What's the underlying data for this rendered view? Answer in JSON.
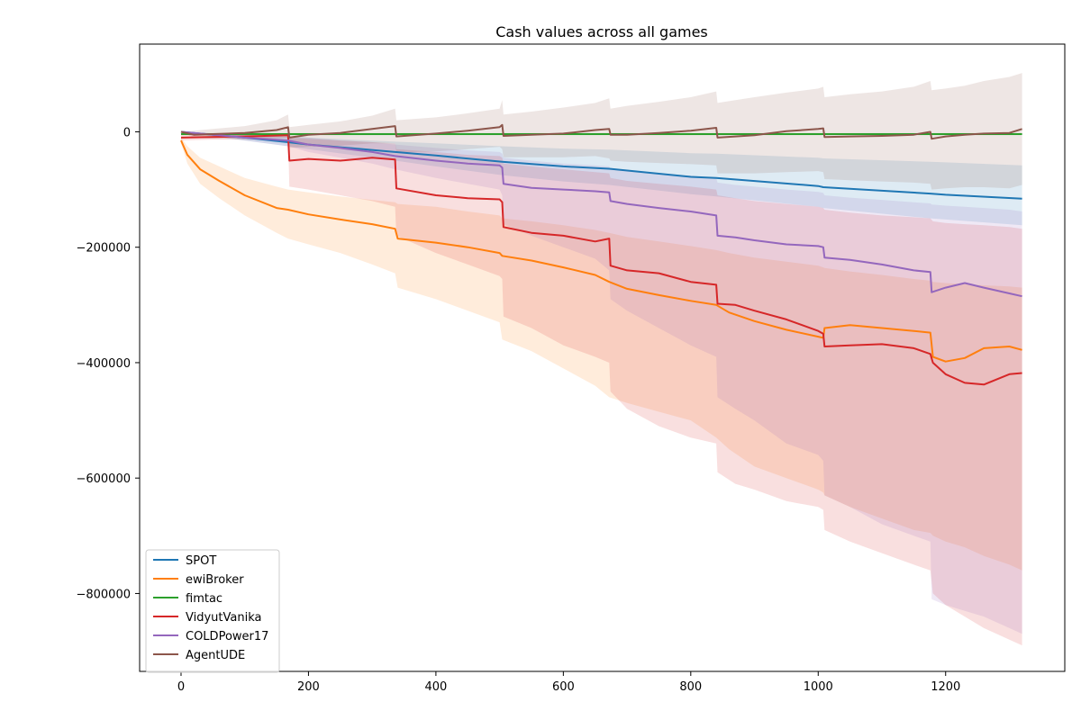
{
  "chart_data": {
    "type": "line",
    "title": "Cash values across all games",
    "xlabel": "",
    "ylabel": "",
    "xlim": [
      -65,
      1387
    ],
    "ylim": [
      -935000,
      152000
    ],
    "xticks": [
      0,
      200,
      400,
      600,
      800,
      1000,
      1200
    ],
    "xtick_labels": [
      "0",
      "200",
      "400",
      "600",
      "800",
      "1000",
      "1200"
    ],
    "yticks": [
      0,
      -200000,
      -400000,
      -600000,
      -800000
    ],
    "ytick_labels": [
      "0",
      "−200000",
      "−400000",
      "−600000",
      "−800000"
    ],
    "grid": false,
    "legend_position": "lower-left",
    "series": [
      {
        "name": "SPOT",
        "color": "#1f77b4",
        "x": [
          0,
          100,
          168,
          200,
          336,
          400,
          504,
          600,
          672,
          800,
          840,
          1000,
          1008,
          1176,
          1200,
          1320
        ],
        "y": [
          0,
          -10000,
          -18000,
          -22000,
          -35000,
          -41000,
          -52000,
          -60000,
          -64000,
          -78000,
          -80000,
          -94000,
          -96000,
          -107000,
          -109000,
          -116000
        ],
        "band_upper": [
          0,
          -5000,
          -8000,
          -10000,
          -17000,
          -20000,
          -25000,
          -29000,
          -31000,
          -37000,
          -38000,
          -45000,
          -46000,
          -52000,
          -53000,
          -58000
        ],
        "band_lower": [
          0,
          -15000,
          -25000,
          -30000,
          -50000,
          -60000,
          -75000,
          -86000,
          -92000,
          -108000,
          -112000,
          -130000,
          -132000,
          -150000,
          -152000,
          -162000
        ]
      },
      {
        "name": "ewiBroker",
        "color": "#ff7f0e",
        "x": [
          0,
          10,
          30,
          60,
          100,
          150,
          168,
          200,
          250,
          300,
          336,
          340,
          400,
          450,
          500,
          504,
          550,
          600,
          650,
          672,
          700,
          750,
          800,
          840,
          860,
          900,
          950,
          1000,
          1008,
          1010,
          1050,
          1100,
          1150,
          1176,
          1180,
          1200,
          1230,
          1260,
          1300,
          1320
        ],
        "y": [
          -15000,
          -40000,
          -65000,
          -85000,
          -110000,
          -132000,
          -135000,
          -143000,
          -152000,
          -160000,
          -168000,
          -185000,
          -192000,
          -200000,
          -210000,
          -215000,
          -223000,
          -235000,
          -248000,
          -260000,
          -272000,
          -283000,
          -293000,
          -300000,
          -313000,
          -328000,
          -343000,
          -355000,
          -357000,
          -340000,
          -335000,
          -340000,
          -345000,
          -348000,
          -390000,
          -398000,
          -392000,
          -375000,
          -372000,
          -378000
        ],
        "band_upper": [
          -10000,
          -25000,
          -45000,
          -60000,
          -80000,
          -95000,
          -100000,
          -105000,
          -112000,
          -118000,
          -122000,
          -125000,
          -130000,
          -138000,
          -145000,
          -150000,
          -155000,
          -162000,
          -170000,
          -175000,
          -182000,
          -190000,
          -198000,
          -205000,
          -210000,
          -218000,
          -225000,
          -232000,
          -235000,
          -236000,
          -242000,
          -248000,
          -255000,
          -258000,
          -260000,
          -262000,
          -264000,
          -266000,
          -268000,
          -270000
        ],
        "band_lower": [
          -20000,
          -55000,
          -90000,
          -115000,
          -145000,
          -175000,
          -185000,
          -195000,
          -210000,
          -230000,
          -245000,
          -270000,
          -290000,
          -310000,
          -330000,
          -360000,
          -380000,
          -410000,
          -440000,
          -460000,
          -470000,
          -485000,
          -500000,
          -530000,
          -550000,
          -580000,
          -600000,
          -620000,
          -625000,
          -630000,
          -650000,
          -670000,
          -690000,
          -695000,
          -700000,
          -710000,
          -720000,
          -735000,
          -750000,
          -760000
        ]
      },
      {
        "name": "fimtac",
        "color": "#2ca02c",
        "x": [
          0,
          1320
        ],
        "y": [
          -4000,
          -4000
        ],
        "band_upper": [
          -2000,
          -2000
        ],
        "band_lower": [
          -6000,
          -6000
        ]
      },
      {
        "name": "VidyutVanika",
        "color": "#d62728",
        "x": [
          0,
          100,
          168,
          170,
          200,
          250,
          300,
          336,
          338,
          400,
          450,
          500,
          504,
          506,
          550,
          600,
          650,
          672,
          674,
          700,
          750,
          800,
          840,
          842,
          870,
          900,
          950,
          1000,
          1008,
          1010,
          1050,
          1100,
          1150,
          1176,
          1180,
          1200,
          1230,
          1260,
          1300,
          1320
        ],
        "y": [
          -10000,
          -8000,
          -6000,
          -50000,
          -47000,
          -50000,
          -45000,
          -48000,
          -98000,
          -110000,
          -115000,
          -117000,
          -122000,
          -165000,
          -175000,
          -180000,
          -190000,
          -185000,
          -232000,
          -240000,
          -245000,
          -260000,
          -265000,
          -298000,
          -300000,
          -310000,
          -325000,
          -345000,
          -350000,
          -372000,
          -370000,
          -368000,
          -375000,
          -385000,
          -400000,
          -420000,
          -435000,
          -438000,
          -420000,
          -418000
        ],
        "band_upper": [
          -5000,
          -5000,
          -5000,
          -10000,
          -12000,
          -15000,
          -18000,
          -20000,
          -30000,
          -35000,
          -40000,
          -42000,
          -45000,
          -55000,
          -60000,
          -65000,
          -70000,
          -72000,
          -80000,
          -85000,
          -90000,
          -95000,
          -100000,
          -110000,
          -115000,
          -120000,
          -125000,
          -130000,
          -132000,
          -135000,
          -140000,
          -145000,
          -148000,
          -150000,
          -155000,
          -158000,
          -160000,
          -162000,
          -165000,
          -168000
        ],
        "band_lower": [
          -15000,
          -12000,
          -10000,
          -95000,
          -100000,
          -110000,
          -120000,
          -130000,
          -180000,
          -210000,
          -230000,
          -250000,
          -255000,
          -320000,
          -340000,
          -370000,
          -390000,
          -400000,
          -450000,
          -480000,
          -510000,
          -530000,
          -540000,
          -590000,
          -610000,
          -620000,
          -640000,
          -650000,
          -655000,
          -690000,
          -710000,
          -730000,
          -750000,
          -760000,
          -800000,
          -820000,
          -840000,
          -860000,
          -880000,
          -890000
        ]
      },
      {
        "name": "COLDPower17",
        "color": "#9467bd",
        "x": [
          0,
          100,
          168,
          200,
          250,
          300,
          336,
          400,
          450,
          500,
          504,
          506,
          550,
          600,
          650,
          672,
          674,
          700,
          750,
          800,
          840,
          842,
          870,
          900,
          950,
          1000,
          1008,
          1010,
          1050,
          1100,
          1150,
          1176,
          1178,
          1200,
          1230,
          1260,
          1300,
          1320
        ],
        "y": [
          0,
          -10000,
          -15000,
          -22000,
          -28000,
          -35000,
          -42000,
          -50000,
          -55000,
          -58000,
          -62000,
          -90000,
          -97000,
          -100000,
          -103000,
          -105000,
          -120000,
          -125000,
          -132000,
          -138000,
          -145000,
          -180000,
          -183000,
          -188000,
          -195000,
          -198000,
          -200000,
          -218000,
          -222000,
          -230000,
          -240000,
          -243000,
          -278000,
          -270000,
          -262000,
          -270000,
          -280000,
          -285000
        ],
        "band_upper": [
          0,
          -5000,
          -8000,
          -10000,
          -15000,
          -18000,
          -22000,
          -28000,
          -32000,
          -35000,
          -38000,
          -45000,
          -50000,
          -55000,
          -58000,
          -60000,
          -65000,
          -68000,
          -72000,
          -76000,
          -80000,
          -88000,
          -92000,
          -95000,
          -100000,
          -104000,
          -106000,
          -110000,
          -114000,
          -118000,
          -122000,
          -124000,
          -126000,
          -128000,
          -130000,
          -132000,
          -135000,
          -138000
        ],
        "band_lower": [
          0,
          -15000,
          -25000,
          -35000,
          -45000,
          -55000,
          -65000,
          -80000,
          -90000,
          -100000,
          -110000,
          -160000,
          -180000,
          -200000,
          -220000,
          -240000,
          -290000,
          -310000,
          -340000,
          -370000,
          -390000,
          -460000,
          -480000,
          -500000,
          -540000,
          -560000,
          -570000,
          -630000,
          -650000,
          -680000,
          -700000,
          -710000,
          -810000,
          -820000,
          -830000,
          -840000,
          -860000,
          -870000
        ]
      },
      {
        "name": "AgentUDE",
        "color": "#8c564b",
        "x": [
          0,
          20,
          50,
          100,
          150,
          168,
          170,
          200,
          250,
          300,
          336,
          338,
          400,
          450,
          500,
          504,
          506,
          550,
          600,
          650,
          672,
          674,
          700,
          750,
          800,
          840,
          842,
          870,
          900,
          950,
          1000,
          1008,
          1010,
          1050,
          1100,
          1150,
          1176,
          1178,
          1200,
          1230,
          1260,
          1300,
          1320
        ],
        "y": [
          0,
          -5000,
          -4000,
          -2000,
          3000,
          8000,
          -10000,
          -5000,
          -2000,
          5000,
          10000,
          -8000,
          -3000,
          2000,
          8000,
          12000,
          -7000,
          -5000,
          -3000,
          3000,
          5000,
          -5000,
          -5000,
          -2000,
          2000,
          7000,
          -10000,
          -8000,
          -6000,
          1000,
          5000,
          6000,
          -9000,
          -8000,
          -7000,
          -5000,
          0,
          -12000,
          -8000,
          -5000,
          -3000,
          -2000,
          5000
        ],
        "band_upper": [
          0,
          2000,
          5000,
          10000,
          20000,
          30000,
          8000,
          12000,
          18000,
          28000,
          40000,
          20000,
          25000,
          32000,
          40000,
          55000,
          30000,
          35000,
          42000,
          50000,
          58000,
          40000,
          45000,
          52000,
          60000,
          70000,
          50000,
          55000,
          60000,
          68000,
          75000,
          78000,
          60000,
          65000,
          70000,
          78000,
          88000,
          72000,
          75000,
          80000,
          88000,
          95000,
          102000
        ],
        "band_lower": [
          0,
          -10000,
          -12000,
          -14000,
          -14000,
          -14000,
          -28000,
          -26000,
          -24000,
          -20000,
          -20000,
          -36000,
          -34000,
          -30000,
          -26000,
          -30000,
          -44000,
          -44000,
          -44000,
          -42000,
          -46000,
          -50000,
          -52000,
          -54000,
          -56000,
          -58000,
          -72000,
          -72000,
          -72000,
          -70000,
          -68000,
          -70000,
          -82000,
          -84000,
          -86000,
          -88000,
          -90000,
          -100000,
          -98000,
          -96000,
          -96000,
          -98000,
          -92000
        ]
      }
    ]
  }
}
